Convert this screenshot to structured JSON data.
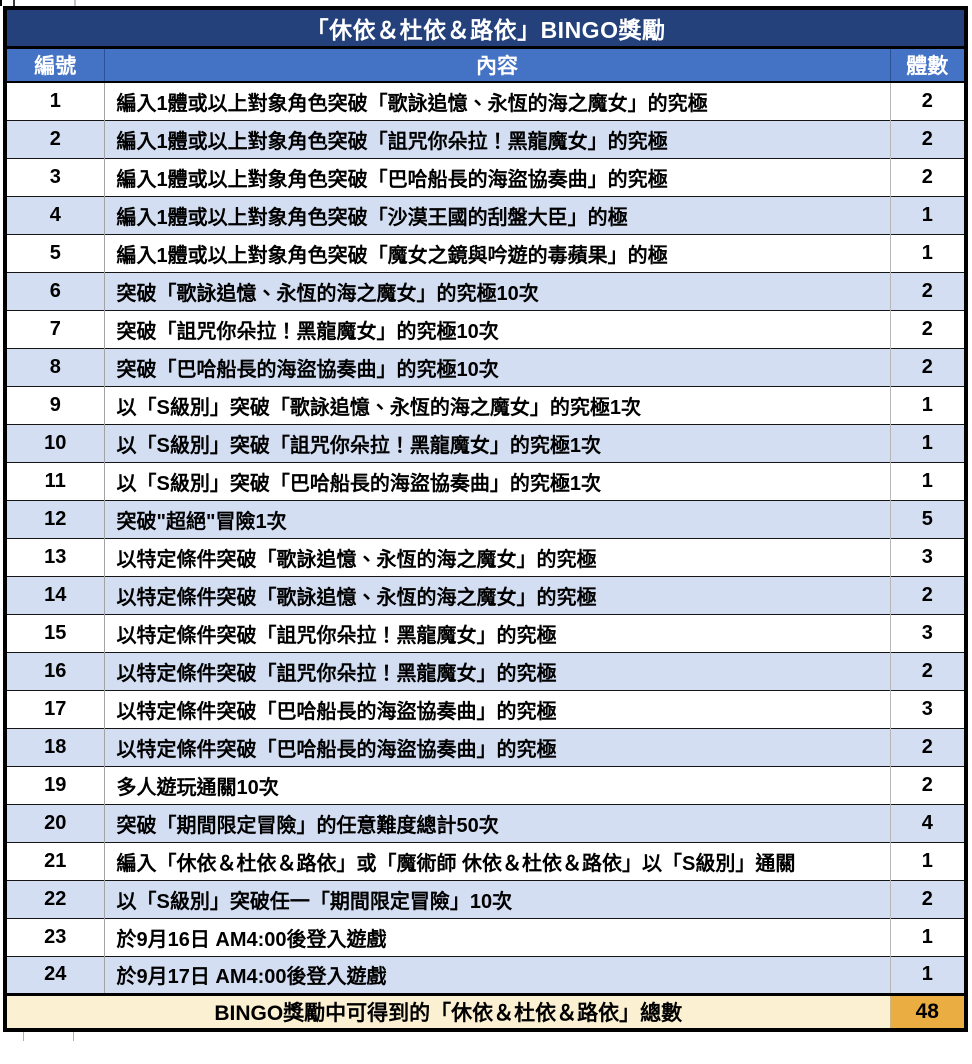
{
  "chart_data": {
    "type": "table",
    "title": "「休依＆杜依＆路依」BINGO獎勵",
    "columns": [
      "編號",
      "內容",
      "體數"
    ],
    "rows": [
      [
        "1",
        "編入1體或以上對象角色突破「歌詠追憶、永恆的海之魔女」的究極",
        "2"
      ],
      [
        "2",
        "編入1體或以上對象角色突破「詛咒你朵拉！黑龍魔女」的究極",
        "2"
      ],
      [
        "3",
        "編入1體或以上對象角色突破「巴哈船長的海盜協奏曲」的究極",
        "2"
      ],
      [
        "4",
        "編入1體或以上對象角色突破「沙漠王國的刮盤大臣」的極",
        "1"
      ],
      [
        "5",
        "編入1體或以上對象角色突破「魔女之鏡與吟遊的毒蘋果」的極",
        "1"
      ],
      [
        "6",
        "突破「歌詠追憶、永恆的海之魔女」的究極10次",
        "2"
      ],
      [
        "7",
        "突破「詛咒你朵拉！黑龍魔女」的究極10次",
        "2"
      ],
      [
        "8",
        "突破「巴哈船長的海盜協奏曲」的究極10次",
        "2"
      ],
      [
        "9",
        "以「S級別」突破「歌詠追憶、永恆的海之魔女」的究極1次",
        "1"
      ],
      [
        "10",
        "以「S級別」突破「詛咒你朵拉！黑龍魔女」的究極1次",
        "1"
      ],
      [
        "11",
        "以「S級別」突破「巴哈船長的海盜協奏曲」的究極1次",
        "1"
      ],
      [
        "12",
        "突破\"超絕\"冒險1次",
        "5"
      ],
      [
        "13",
        "以特定條件突破「歌詠追憶、永恆的海之魔女」的究極",
        "3"
      ],
      [
        "14",
        "以特定條件突破「歌詠追憶、永恆的海之魔女」的究極",
        "2"
      ],
      [
        "15",
        "以特定條件突破「詛咒你朵拉！黑龍魔女」的究極",
        "3"
      ],
      [
        "16",
        "以特定條件突破「詛咒你朵拉！黑龍魔女」的究極",
        "2"
      ],
      [
        "17",
        "以特定條件突破「巴哈船長的海盜協奏曲」的究極",
        "3"
      ],
      [
        "18",
        "以特定條件突破「巴哈船長的海盜協奏曲」的究極",
        "2"
      ],
      [
        "19",
        "多人遊玩通關10次",
        "2"
      ],
      [
        "20",
        "突破「期間限定冒險」的任意難度總計50次",
        "4"
      ],
      [
        "21",
        "編入「休依＆杜依＆路依」或「魔術師 休依＆杜依＆路依」以「S級別」通關",
        "1"
      ],
      [
        "22",
        "以「S級別」突破任一「期間限定冒險」10次",
        "2"
      ],
      [
        "23",
        "於9月16日 AM4:00後登入遊戲",
        "1"
      ],
      [
        "24",
        "於9月17日 AM4:00後登入遊戲",
        "1"
      ]
    ],
    "footer_label": "BINGO獎勵中可得到的「休依＆杜依＆路依」總數",
    "footer_total": "48",
    "layout": {
      "grid": true,
      "zebra_striping": true,
      "columns_count": 3
    }
  },
  "colors": {
    "navy": "#24417C",
    "headerBlue": "#4472C4",
    "rowAlt": "#D3DEF2",
    "rowWhite": "#FFFFFF",
    "cream": "#FBF0D2",
    "orange": "#E9AD41",
    "borderBlack": "#000000"
  }
}
